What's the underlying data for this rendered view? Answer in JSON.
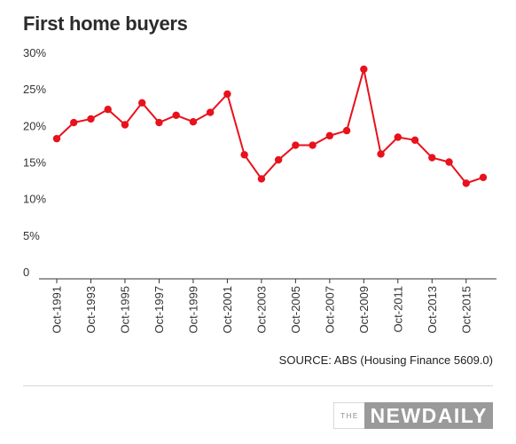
{
  "chart_data": {
    "type": "line",
    "title": "First home buyers",
    "ylim": [
      0,
      30
    ],
    "y_ticks": [
      "0",
      "5%",
      "10%",
      "15%",
      "20%",
      "25%",
      "30%"
    ],
    "y_tick_values": [
      0,
      5,
      10,
      15,
      20,
      25,
      30
    ],
    "x_tick_labels": [
      "Oct-1991",
      "Oct-1993",
      "Oct-1995",
      "Oct-1997",
      "Oct-1999",
      "Oct-2001",
      "Oct-2003",
      "Oct-2005",
      "Oct-2007",
      "Oct-2009",
      "Oct-2011",
      "Oct-2013",
      "Oct-2015"
    ],
    "x": [
      "Oct-1991",
      "Oct-1992",
      "Oct-1993",
      "Oct-1994",
      "Oct-1995",
      "Oct-1996",
      "Oct-1997",
      "Oct-1998",
      "Oct-1999",
      "Oct-2000",
      "Oct-2001",
      "Oct-2002",
      "Oct-2003",
      "Oct-2004",
      "Oct-2005",
      "Oct-2006",
      "Oct-2007",
      "Oct-2008",
      "Oct-2009",
      "Oct-2010",
      "Oct-2011",
      "Oct-2012",
      "Oct-2013",
      "Oct-2014",
      "Oct-2015",
      "Oct-2016"
    ],
    "series": [
      {
        "values": [
          18.2,
          20.4,
          20.9,
          22.2,
          20.1,
          23.1,
          20.4,
          21.4,
          20.5,
          21.8,
          24.3,
          16.0,
          12.7,
          15.3,
          17.3,
          17.3,
          18.6,
          19.3,
          27.7,
          16.1,
          18.4,
          18.0,
          15.6,
          15.0,
          12.1,
          12.9
        ]
      }
    ],
    "color": "#e8111c",
    "grid": false,
    "legend": "none"
  },
  "source": "SOURCE: ABS (Housing Finance 5609.0)",
  "logo": {
    "the": "THE",
    "main": "NEWDAILY"
  }
}
